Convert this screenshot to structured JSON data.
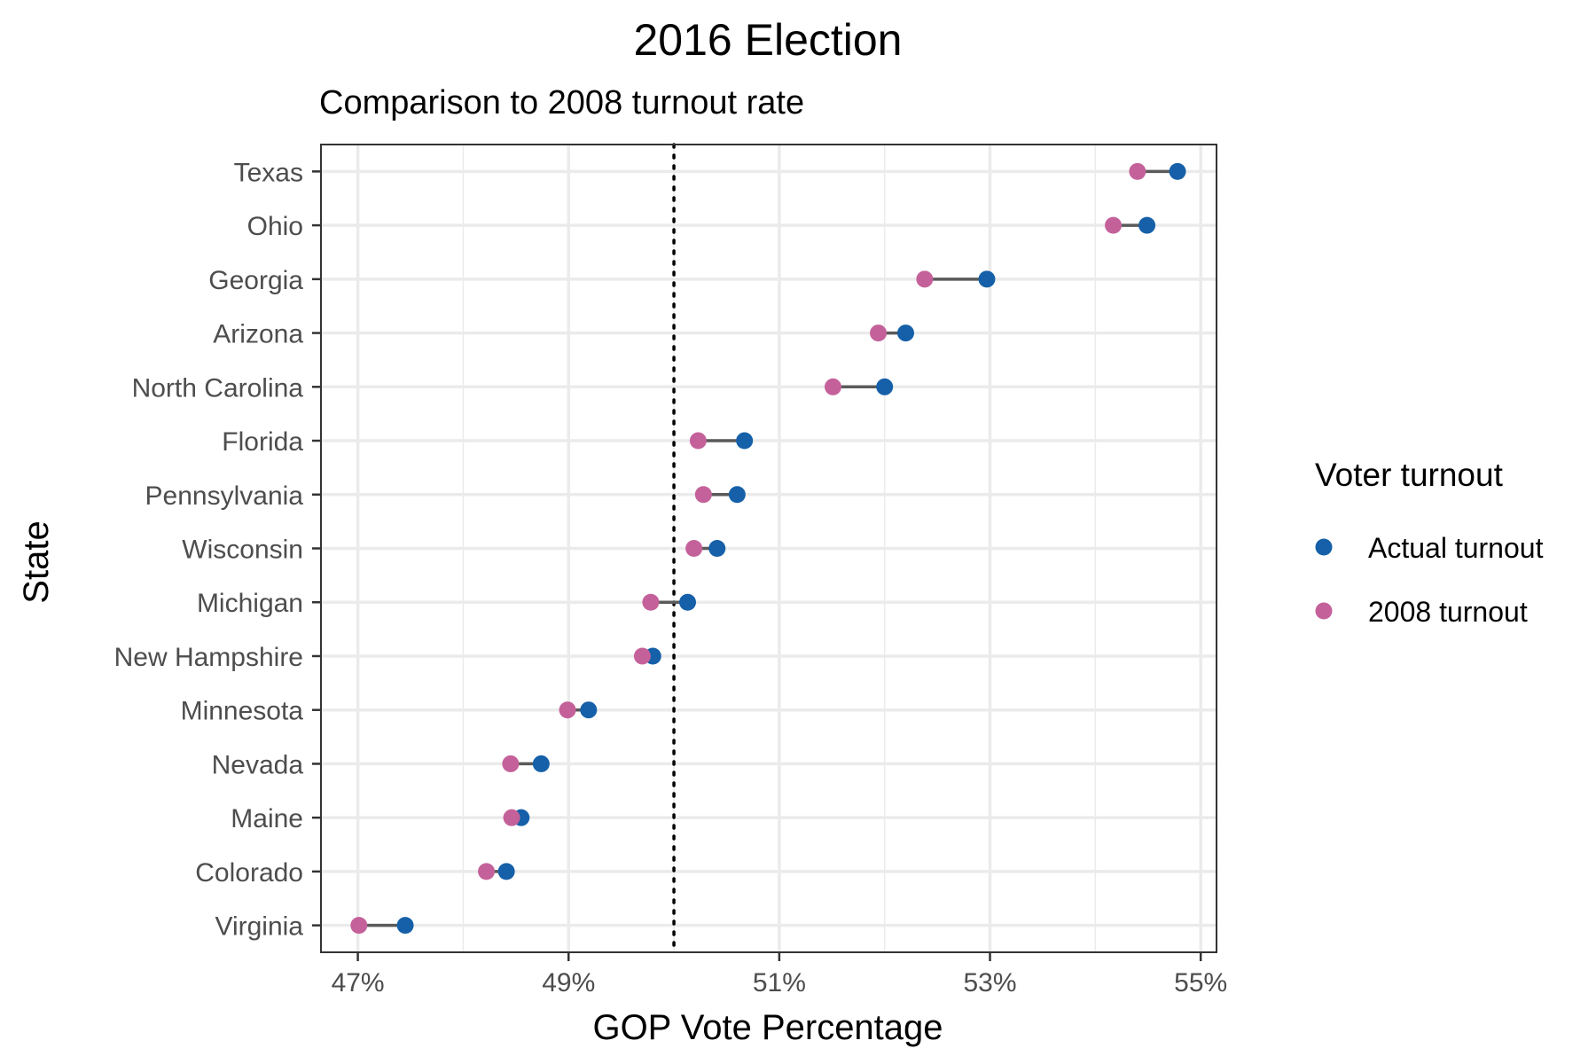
{
  "chart_data": {
    "type": "dumbbell",
    "title": "2016 Election",
    "subtitle": "Comparison to 2008 turnout rate",
    "xlabel": "GOP Vote Percentage",
    "ylabel": "State",
    "xlim": [
      46.65,
      55.15
    ],
    "x_ticks": [
      47,
      49,
      51,
      53,
      55
    ],
    "x_tick_labels": [
      "47%",
      "49%",
      "51%",
      "53%",
      "55%"
    ],
    "reference_line": 50.0,
    "grid": true,
    "legend": {
      "title": "Voter turnout",
      "position": "right",
      "entries": [
        {
          "key": "actual",
          "label": "Actual turnout",
          "color": "#1560a8"
        },
        {
          "key": "y2008",
          "label": "2008 turnout",
          "color": "#c4619a"
        }
      ]
    },
    "connector_color": "#5a5a5a",
    "states": [
      {
        "name": "Texas",
        "actual": 54.78,
        "y2008": 54.4
      },
      {
        "name": "Ohio",
        "actual": 54.49,
        "y2008": 54.17
      },
      {
        "name": "Georgia",
        "actual": 52.97,
        "y2008": 52.38
      },
      {
        "name": "Arizona",
        "actual": 52.2,
        "y2008": 51.94
      },
      {
        "name": "North Carolina",
        "actual": 52.0,
        "y2008": 51.51
      },
      {
        "name": "Florida",
        "actual": 50.67,
        "y2008": 50.23
      },
      {
        "name": "Pennsylvania",
        "actual": 50.6,
        "y2008": 50.28
      },
      {
        "name": "Wisconsin",
        "actual": 50.41,
        "y2008": 50.19
      },
      {
        "name": "Michigan",
        "actual": 50.13,
        "y2008": 49.78
      },
      {
        "name": "New Hampshire",
        "actual": 49.8,
        "y2008": 49.7
      },
      {
        "name": "Minnesota",
        "actual": 49.19,
        "y2008": 48.99
      },
      {
        "name": "Nevada",
        "actual": 48.74,
        "y2008": 48.45
      },
      {
        "name": "Maine",
        "actual": 48.55,
        "y2008": 48.46
      },
      {
        "name": "Colorado",
        "actual": 48.41,
        "y2008": 48.22
      },
      {
        "name": "Virginia",
        "actual": 47.45,
        "y2008": 47.01
      }
    ]
  }
}
